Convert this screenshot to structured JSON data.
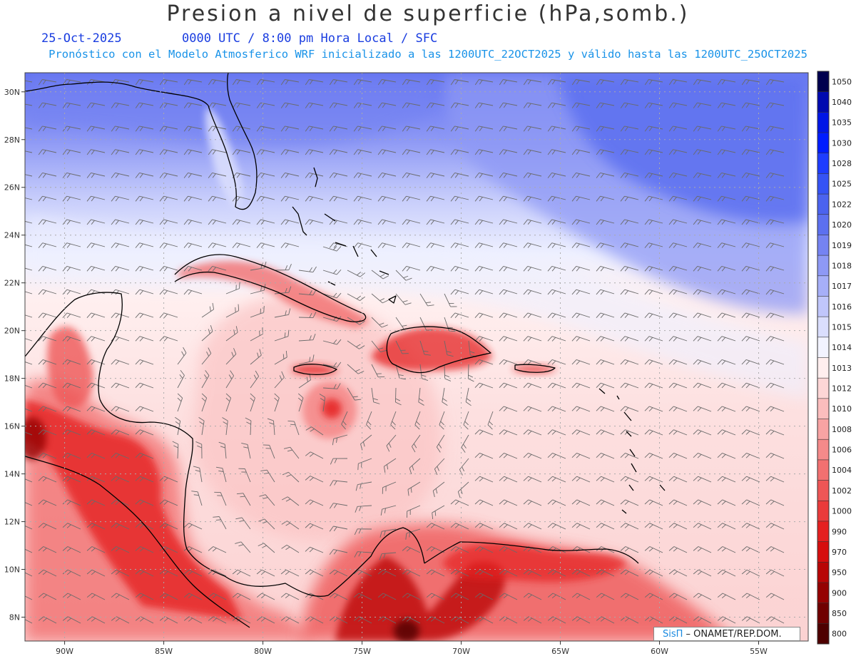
{
  "header": {
    "title": "Presion a nivel de superficie (hPa,somb.)",
    "date": "25-Oct-2025",
    "time_info": "0000 UTC / 8:00 pm Hora Local / SFC",
    "model_info": "Pronóstico con el Modelo Atmosferico WRF inicializado a las 1200UTC_22OCT2025 y válido hasta las  1200UTC_25OCT2025"
  },
  "credit": {
    "brand": "SisΠ",
    "text": " – ONAMET/REP.DOM."
  },
  "map": {
    "lat_range": [
      7.0,
      30.8
    ],
    "lon_range": [
      -92.0,
      -52.5
    ],
    "lat_labels": [
      "8N",
      "10N",
      "12N",
      "14N",
      "16N",
      "18N",
      "20N",
      "22N",
      "24N",
      "26N",
      "28N",
      "30N"
    ],
    "lat_values": [
      8,
      10,
      12,
      14,
      16,
      18,
      20,
      22,
      24,
      26,
      28,
      30
    ],
    "lon_labels": [
      "90W",
      "85W",
      "80W",
      "75W",
      "70W",
      "65W",
      "60W",
      "55W"
    ],
    "lon_values": [
      -90,
      -85,
      -80,
      -75,
      -70,
      -65,
      -60,
      -55
    ],
    "colorbar": {
      "labels": [
        "1050",
        "1040",
        "1035",
        "1030",
        "1028",
        "1025",
        "1022",
        "1020",
        "1019",
        "1018",
        "1017",
        "1016",
        "1015",
        "1014",
        "1013",
        "1012",
        "1010",
        "1008",
        "1006",
        "1004",
        "1002",
        "1000",
        "990",
        "970",
        "950",
        "900",
        "850",
        "800"
      ],
      "colors": [
        "#00004e",
        "#000ab0",
        "#0016e6",
        "#001cff",
        "#1e3cff",
        "#3553f5",
        "#4b63ef",
        "#5c70f0",
        "#7583f2",
        "#8e99f5",
        "#a6aff8",
        "#c0c6fb",
        "#dadefd",
        "#f2f3ff",
        "#ffeeee",
        "#fdd6d6",
        "#fbbdbd",
        "#f8a3a3",
        "#f58a8a",
        "#f27070",
        "#ee5656",
        "#ea3b3b",
        "#e52020",
        "#d60e0e",
        "#b80606",
        "#950202",
        "#700000",
        "#4e0000"
      ]
    },
    "features": {
      "low_center_label": "",
      "pressure_field": "shaded",
      "wind_barbs": "on",
      "grid": "dotted"
    }
  }
}
